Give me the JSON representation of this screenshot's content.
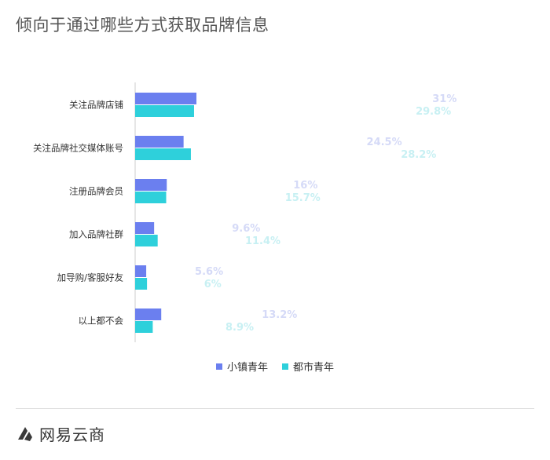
{
  "title": "倾向于通过哪些方式获取品牌信息",
  "chart_data": {
    "type": "bar",
    "orientation": "horizontal",
    "categories": [
      "关注品牌店铺",
      "关注品牌社交媒体账号",
      "注册品牌会员",
      "加入品牌社群",
      "加导购/客服好友",
      "以上都不会"
    ],
    "series": [
      {
        "name": "小镇青年",
        "values": [
          31,
          24.5,
          16,
          9.6,
          5.6,
          13.2
        ],
        "labels": [
          "31%",
          "24.5%",
          "16%",
          "9.6%",
          "5.6%",
          "13.2%"
        ],
        "color": "#6B7FEF",
        "label_color": "#D5DAF7"
      },
      {
        "name": "都市青年",
        "values": [
          29.8,
          28.2,
          15.7,
          11.4,
          6,
          8.9
        ],
        "labels": [
          "29.8%",
          "28.2%",
          "15.7%",
          "11.4%",
          "6%",
          "8.9%"
        ],
        "color": "#2ED0DB",
        "label_color": "#C8F0F3"
      }
    ],
    "unit": "%",
    "legend_position": "bottom-center",
    "grid": false
  },
  "footer": {
    "brand": "网易云商",
    "logo_icon": "netease-yunshang-logo-icon",
    "logo_color": "#3A3A3A"
  }
}
